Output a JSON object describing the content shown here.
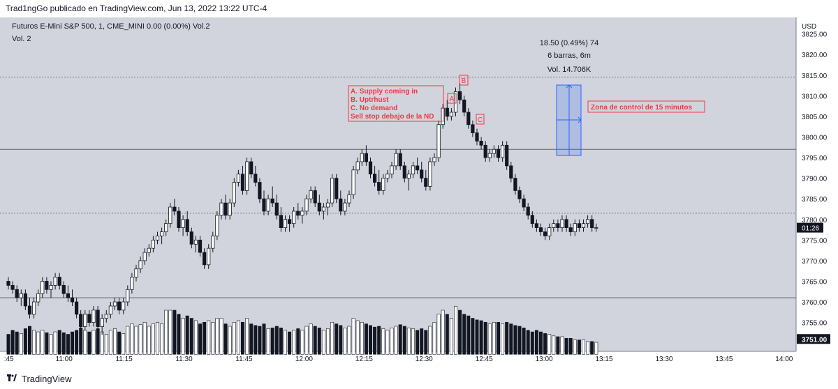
{
  "header": {
    "published_by": "Trad1ngGo publicado en TradingView.com, Jun 13, 2022 13:22 UTC-4"
  },
  "footer": {
    "brand": "TradingView"
  },
  "colors": {
    "background": "#d1d4dc",
    "candle": "#131722",
    "annotation_red": "#f23645",
    "measure_blue": "#2962ff"
  },
  "chart_data": {
    "type": "candlestick",
    "symbol_line": "Futuros E-Mini S&P 500, 1, CME_MINI  0.00 (0.00%)  Vol.2",
    "volume_legend": "Vol.  2",
    "currency": "USD",
    "ylim": [
      3748,
      3829
    ],
    "y_ticks": [
      "3825.00",
      "3820.00",
      "3815.00",
      "3810.00",
      "3805.00",
      "3800.00",
      "3795.00",
      "3790.00",
      "3785.00",
      "3780.00",
      "3775.00",
      "3770.00",
      "3765.00",
      "3760.00",
      "3755.00",
      "3751.00"
    ],
    "y_tick_values": [
      3825,
      3820,
      3815,
      3810,
      3805,
      3800,
      3795,
      3790,
      3785,
      3780,
      3775,
      3770,
      3765,
      3760,
      3755,
      3751
    ],
    "x_ticks": [
      ":45",
      "11:00",
      "11:15",
      "11:30",
      "11:45",
      "12:00",
      "12:15",
      "12:30",
      "12:45",
      "13:00",
      "13:15",
      "13:30",
      "13:45",
      "14:00"
    ],
    "x_tick_minutes": [
      45,
      60,
      75,
      90,
      105,
      120,
      135,
      150,
      165,
      180,
      195,
      210,
      225,
      240
    ],
    "x_start_minute": 44,
    "x_end_minute": 243,
    "current_price_label": "01:26",
    "current_price_value": 3778,
    "volume_level_label": "3751.00",
    "volume_max": 80,
    "volume_axis_price": 3751,
    "horizontal_lines": [
      {
        "price": 3814.5,
        "style": "dotted"
      },
      {
        "price": 3797,
        "style": "solid"
      },
      {
        "price": 3781.5,
        "style": "dotted"
      },
      {
        "price": 3761,
        "style": "solid"
      }
    ],
    "candles": [
      [
        3765,
        3766,
        3763,
        3764,
        25
      ],
      [
        3764,
        3765,
        3762,
        3763,
        30
      ],
      [
        3763,
        3764,
        3760,
        3761,
        28
      ],
      [
        3761,
        3763,
        3759,
        3762,
        26
      ],
      [
        3762,
        3763,
        3758,
        3759,
        32
      ],
      [
        3759,
        3761,
        3756,
        3757,
        35
      ],
      [
        3757,
        3761,
        3756,
        3760,
        30
      ],
      [
        3760,
        3763,
        3759,
        3762,
        28
      ],
      [
        3762,
        3766,
        3761,
        3765,
        30
      ],
      [
        3765,
        3766,
        3762,
        3763,
        27
      ],
      [
        3763,
        3765,
        3761,
        3764,
        25
      ],
      [
        3764,
        3767,
        3763,
        3766,
        28
      ],
      [
        3766,
        3767,
        3763,
        3764,
        30
      ],
      [
        3764,
        3765,
        3761,
        3762,
        27
      ],
      [
        3762,
        3764,
        3760,
        3761,
        25
      ],
      [
        3761,
        3763,
        3759,
        3760,
        28
      ],
      [
        3760,
        3761,
        3756,
        3757,
        30
      ],
      [
        3757,
        3758,
        3753,
        3754,
        33
      ],
      [
        3754,
        3758,
        3753,
        3757,
        30
      ],
      [
        3757,
        3758,
        3754,
        3755,
        28
      ],
      [
        3755,
        3759,
        3754,
        3758,
        30
      ],
      [
        3758,
        3759,
        3753,
        3754,
        32
      ],
      [
        3754,
        3757,
        3752,
        3756,
        28
      ],
      [
        3756,
        3758,
        3755,
        3757,
        25
      ],
      [
        3757,
        3760,
        3756,
        3759,
        30
      ],
      [
        3759,
        3761,
        3758,
        3760,
        32
      ],
      [
        3760,
        3761,
        3757,
        3758,
        28
      ],
      [
        3758,
        3761,
        3757,
        3760,
        26
      ],
      [
        3760,
        3764,
        3759,
        3763,
        35
      ],
      [
        3763,
        3767,
        3762,
        3766,
        38
      ],
      [
        3766,
        3769,
        3765,
        3768,
        35
      ],
      [
        3768,
        3771,
        3767,
        3770,
        37
      ],
      [
        3770,
        3773,
        3769,
        3772,
        40
      ],
      [
        3772,
        3774,
        3771,
        3773,
        35
      ],
      [
        3773,
        3776,
        3772,
        3775,
        38
      ],
      [
        3775,
        3777,
        3774,
        3776,
        40
      ],
      [
        3776,
        3778,
        3774,
        3777,
        38
      ],
      [
        3777,
        3780,
        3776,
        3779,
        55
      ],
      [
        3779,
        3784,
        3778,
        3783,
        55
      ],
      [
        3783,
        3785,
        3781,
        3782,
        55
      ],
      [
        3782,
        3783,
        3777,
        3778,
        50
      ],
      [
        3778,
        3781,
        3776,
        3780,
        45
      ],
      [
        3780,
        3782,
        3776,
        3777,
        48
      ],
      [
        3777,
        3778,
        3773,
        3774,
        45
      ],
      [
        3774,
        3776,
        3772,
        3775,
        42
      ],
      [
        3775,
        3776,
        3771,
        3772,
        38
      ],
      [
        3772,
        3773,
        3768,
        3769,
        40
      ],
      [
        3769,
        3774,
        3768,
        3773,
        42
      ],
      [
        3773,
        3777,
        3772,
        3776,
        40
      ],
      [
        3776,
        3782,
        3775,
        3781,
        45
      ],
      [
        3781,
        3785,
        3780,
        3784,
        45
      ],
      [
        3784,
        3786,
        3780,
        3781,
        38
      ],
      [
        3781,
        3785,
        3780,
        3784,
        35
      ],
      [
        3784,
        3790,
        3783,
        3789,
        40
      ],
      [
        3789,
        3792,
        3788,
        3791,
        42
      ],
      [
        3791,
        3793,
        3786,
        3787,
        40
      ],
      [
        3787,
        3795,
        3786,
        3794,
        45
      ],
      [
        3794,
        3795,
        3790,
        3791,
        38
      ],
      [
        3791,
        3793,
        3788,
        3789,
        36
      ],
      [
        3789,
        3790,
        3784,
        3785,
        35
      ],
      [
        3785,
        3787,
        3781,
        3782,
        38
      ],
      [
        3782,
        3786,
        3781,
        3785,
        32
      ],
      [
        3785,
        3788,
        3783,
        3784,
        33
      ],
      [
        3784,
        3786,
        3780,
        3781,
        35
      ],
      [
        3781,
        3783,
        3777,
        3778,
        33
      ],
      [
        3778,
        3781,
        3777,
        3780,
        30
      ],
      [
        3780,
        3781,
        3777,
        3779,
        28
      ],
      [
        3779,
        3783,
        3778,
        3782,
        30
      ],
      [
        3782,
        3784,
        3780,
        3781,
        32
      ],
      [
        3781,
        3783,
        3779,
        3782,
        30
      ],
      [
        3782,
        3786,
        3781,
        3785,
        35
      ],
      [
        3785,
        3788,
        3784,
        3787,
        38
      ],
      [
        3787,
        3788,
        3783,
        3784,
        35
      ],
      [
        3784,
        3786,
        3781,
        3782,
        33
      ],
      [
        3782,
        3784,
        3780,
        3783,
        30
      ],
      [
        3783,
        3785,
        3781,
        3784,
        32
      ],
      [
        3784,
        3791,
        3783,
        3790,
        40
      ],
      [
        3790,
        3791,
        3784,
        3785,
        38
      ],
      [
        3785,
        3787,
        3781,
        3782,
        36
      ],
      [
        3782,
        3785,
        3781,
        3784,
        33
      ],
      [
        3784,
        3787,
        3783,
        3786,
        35
      ],
      [
        3786,
        3793,
        3785,
        3792,
        45
      ],
      [
        3792,
        3795,
        3791,
        3794,
        42
      ],
      [
        3794,
        3797,
        3793,
        3796,
        40
      ],
      [
        3796,
        3798,
        3793,
        3794,
        38
      ],
      [
        3794,
        3795,
        3790,
        3791,
        36
      ],
      [
        3791,
        3793,
        3788,
        3789,
        34
      ],
      [
        3789,
        3792,
        3786,
        3787,
        35
      ],
      [
        3787,
        3791,
        3786,
        3790,
        32
      ],
      [
        3790,
        3792,
        3789,
        3791,
        30
      ],
      [
        3791,
        3794,
        3790,
        3793,
        33
      ],
      [
        3793,
        3797,
        3792,
        3796,
        35
      ],
      [
        3796,
        3797,
        3792,
        3793,
        37
      ],
      [
        3793,
        3794,
        3789,
        3790,
        35
      ],
      [
        3790,
        3792,
        3787,
        3791,
        33
      ],
      [
        3791,
        3794,
        3790,
        3793,
        32
      ],
      [
        3793,
        3795,
        3791,
        3792,
        30
      ],
      [
        3792,
        3794,
        3789,
        3790,
        32
      ],
      [
        3790,
        3792,
        3787,
        3788,
        30
      ],
      [
        3788,
        3795,
        3787,
        3794,
        35
      ],
      [
        3794,
        3796,
        3793,
        3795,
        40
      ],
      [
        3795,
        3804,
        3794,
        3803,
        50
      ],
      [
        3803,
        3808,
        3802,
        3807,
        55
      ],
      [
        3807,
        3809,
        3804,
        3805,
        50
      ],
      [
        3805,
        3807,
        3804,
        3806,
        45
      ],
      [
        3806,
        3812,
        3805,
        3811,
        60
      ],
      [
        3811,
        3813,
        3808,
        3809,
        55
      ],
      [
        3809,
        3810,
        3805,
        3806,
        50
      ],
      [
        3806,
        3807,
        3802,
        3803,
        48
      ],
      [
        3803,
        3804,
        3800,
        3801,
        45
      ],
      [
        3801,
        3802,
        3798,
        3799,
        43
      ],
      [
        3799,
        3800,
        3797,
        3798,
        42
      ],
      [
        3798,
        3799,
        3794,
        3795,
        40
      ],
      [
        3795,
        3797,
        3794,
        3796,
        38
      ],
      [
        3796,
        3798,
        3795,
        3797,
        40
      ],
      [
        3797,
        3798,
        3794,
        3795,
        40
      ],
      [
        3795,
        3799,
        3794,
        3798,
        38
      ],
      [
        3798,
        3799,
        3792,
        3793,
        40
      ],
      [
        3793,
        3794,
        3789,
        3790,
        38
      ],
      [
        3790,
        3791,
        3786,
        3787,
        36
      ],
      [
        3787,
        3788,
        3784,
        3785,
        35
      ],
      [
        3785,
        3786,
        3782,
        3783,
        33
      ],
      [
        3783,
        3784,
        3780,
        3781,
        30
      ],
      [
        3781,
        3782,
        3778,
        3779,
        28
      ],
      [
        3779,
        3780,
        3777,
        3778,
        30
      ],
      [
        3778,
        3779,
        3776,
        3777,
        28
      ],
      [
        3777,
        3778,
        3775,
        3776,
        26
      ],
      [
        3776,
        3779,
        3775,
        3778,
        25
      ],
      [
        3778,
        3780,
        3777,
        3779,
        23
      ],
      [
        3779,
        3780,
        3777,
        3778,
        22
      ],
      [
        3778,
        3781,
        3777,
        3780,
        22
      ],
      [
        3780,
        3781,
        3777,
        3778,
        20
      ],
      [
        3778,
        3779,
        3776,
        3777,
        20
      ],
      [
        3777,
        3780,
        3776,
        3779,
        18
      ],
      [
        3779,
        3780,
        3777,
        3778,
        18
      ],
      [
        3778,
        3780,
        3777,
        3779,
        18
      ],
      [
        3779,
        3781,
        3778,
        3780,
        16
      ],
      [
        3780,
        3781,
        3777,
        3778,
        16
      ],
      [
        3778,
        3779,
        3777,
        3778,
        15
      ]
    ],
    "annotations": {
      "list_lines": [
        "A. Supply coming in",
        "B. Uptrhust",
        "C. No demand",
        "Sell stop debajo de la ND"
      ],
      "marker_a": "A",
      "marker_b": "B",
      "marker_c": "C",
      "zone_label": "Zona de control de 15 minutos",
      "measure_lines": [
        "18.50 (0.49%) 74",
        "6 barras, 6m",
        "Vol. 14.706K"
      ]
    }
  }
}
